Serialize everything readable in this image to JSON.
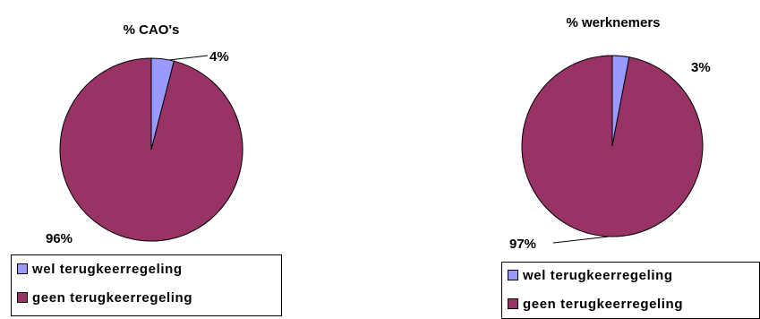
{
  "colors": {
    "wel": "#9999FF",
    "geen": "#993366"
  },
  "chart_data": [
    {
      "type": "pie",
      "title": "% CAO's",
      "categories": [
        "wel terugkeerregeling",
        "geen terugkeerregeling"
      ],
      "values": [
        4,
        96
      ],
      "data_labels": [
        "4%",
        "96%"
      ],
      "legend_position": "bottom-left"
    },
    {
      "type": "pie",
      "title": "% werknemers",
      "categories": [
        "wel terugkeerregeling",
        "geen terugkeerregeling"
      ],
      "values": [
        3,
        97
      ],
      "data_labels": [
        "3%",
        "97%"
      ],
      "legend_position": "bottom-right"
    }
  ]
}
